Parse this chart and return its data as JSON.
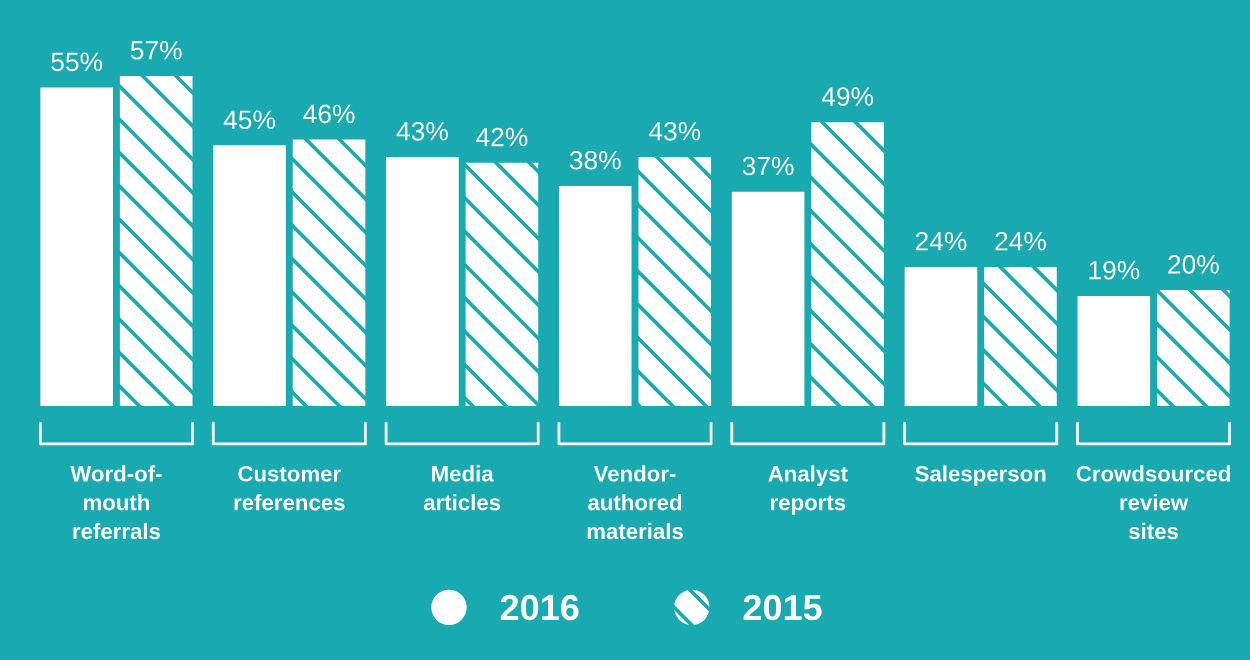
{
  "chart_data": {
    "type": "bar",
    "categories": [
      "Word-of-\nmouth\nreferrals",
      "Customer\nreferences",
      "Media\narticles",
      "Vendor-\nauthored\nmaterials",
      "Analyst\nreports",
      "Salesperson",
      "Crowdsourced\nreview\nsites"
    ],
    "series": [
      {
        "name": "2016",
        "color": "#ffffff",
        "values": [
          55,
          45,
          43,
          38,
          37,
          24,
          19
        ],
        "value_labels": [
          "55%",
          "45%",
          "43%",
          "38%",
          "37%",
          "24%",
          "19%"
        ]
      },
      {
        "name": "2015",
        "color": "#ffffff",
        "values": [
          57,
          46,
          42,
          43,
          49,
          24,
          20
        ],
        "value_labels": [
          "57%",
          "46%",
          "42%",
          "43%",
          "49%",
          "24%",
          "20%"
        ]
      }
    ],
    "legend": "bottom"
  }
}
